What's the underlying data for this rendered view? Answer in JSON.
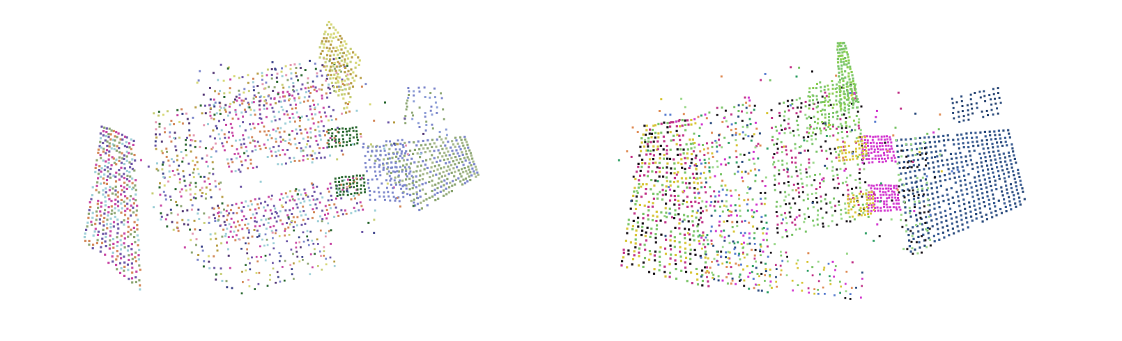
{
  "figure": {
    "panels": [
      {
        "id": "left",
        "palette": [
          "#9fd0d8",
          "#c94aa6",
          "#6f5aa8",
          "#d48a5c",
          "#c8cf78",
          "#8fa876",
          "#7f89cc",
          "#2f6b35",
          "#b9a04a",
          "#5a3f7a",
          "#e59bb4",
          "#444a8e",
          "#d8d97a"
        ],
        "colors": {
          "front_wall": [
            "#9fd0d8",
            "#6f5aa8",
            "#c94aa6",
            "#8fa876",
            "#d48a5c"
          ],
          "floor_plane": [
            "#8fa876",
            "#a7b88d",
            "#7f89cc"
          ],
          "table_rows": [
            "#d48a5c",
            "#9fd0d8",
            "#c94aa6",
            "#6f5aa8"
          ],
          "back_board": [
            "#d8d97a",
            "#c8cf78",
            "#b9a04a"
          ],
          "accent": [
            "#2f6b35",
            "#7f89cc"
          ]
        }
      },
      {
        "id": "right",
        "palette": [
          "#c2378a",
          "#7cc56a",
          "#2f4f80",
          "#1f1a1f",
          "#d8c63a",
          "#9bd88a",
          "#d33ad0",
          "#5b7fd0",
          "#e08f5a",
          "#35a26a"
        ],
        "colors": {
          "front_wall": [
            "#c2378a",
            "#7cc56a",
            "#1f1a1f",
            "#d8c63a"
          ],
          "floor_plane": [
            "#2f4f80",
            "#3b5e94"
          ],
          "table_rows": [
            "#c2378a",
            "#7cc56a",
            "#1f1a1f",
            "#9bd88a"
          ],
          "back_board": [
            "#7cc56a",
            "#8ccf55"
          ],
          "accent": [
            "#d33ad0",
            "#d8c63a",
            "#9bd88a",
            "#5b7fd0"
          ]
        }
      }
    ]
  }
}
